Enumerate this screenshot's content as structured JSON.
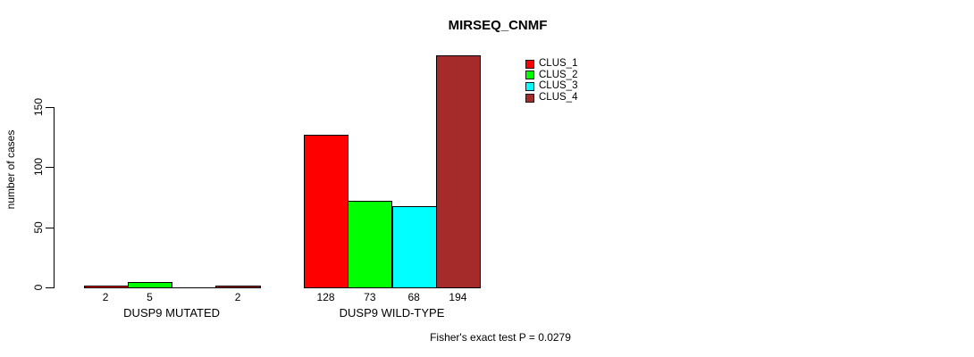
{
  "chart_data": {
    "type": "bar",
    "title": "MIRSEQ_CNMF",
    "ylabel": "number of cases",
    "xlabel": "",
    "categories": [
      "DUSP9 MUTATED",
      "DUSP9 WILD-TYPE"
    ],
    "series": [
      {
        "name": "CLUS_1",
        "color": "#ff0000",
        "values": [
          2,
          128
        ]
      },
      {
        "name": "CLUS_2",
        "color": "#00ff00",
        "values": [
          5,
          73
        ]
      },
      {
        "name": "CLUS_3",
        "color": "#00ffff",
        "values": [
          0,
          68
        ]
      },
      {
        "name": "CLUS_4",
        "color": "#a52a2a",
        "values": [
          2,
          194
        ]
      }
    ],
    "bar_value_labels": [
      [
        "2",
        "5",
        "",
        "2"
      ],
      [
        "128",
        "73",
        "68",
        "194"
      ]
    ],
    "yticks": [
      "0",
      "50",
      "100",
      "150"
    ],
    "ytick_values": [
      0,
      50,
      100,
      150
    ],
    "ylim": [
      0,
      150
    ],
    "grid": false,
    "legend_position": "top-right",
    "legend_entries": [
      "CLUS_1",
      "CLUS_2",
      "CLUS_3",
      "CLUS_4"
    ],
    "annotation": "Fisher's exact test P = 0.0279"
  },
  "colors": {
    "background": "#ffffff",
    "axis": "#000000",
    "text": "#000000",
    "clus_1": "#ff0000",
    "clus_2": "#00ff00",
    "clus_3": "#00ffff",
    "clus_4": "#a52a2a"
  }
}
